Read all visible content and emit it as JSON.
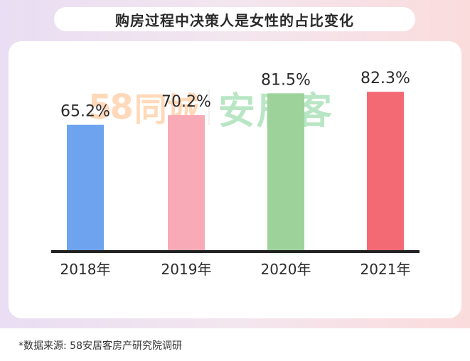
{
  "title": "购房过程中决策人是女性的占比变化",
  "watermark": {
    "logo_number": "58",
    "logo_city": "同城",
    "brand": "安居客"
  },
  "source_note": "*数据来源: 58安居客房产研究院调研",
  "colors": {
    "background_left": "#e9def3",
    "background_right": "#fbdcdc",
    "baseline": "#222222"
  },
  "chart_data": {
    "type": "bar",
    "categories": [
      "2018年",
      "2019年",
      "2020年",
      "2021年"
    ],
    "values": [
      65.2,
      70.2,
      81.5,
      82.3
    ],
    "value_labels": [
      "65.2%",
      "70.2%",
      "81.5%",
      "82.3%"
    ],
    "bar_colors": [
      "#6ea3f0",
      "#f8aab7",
      "#9dd39b",
      "#f36a74"
    ],
    "ylim": [
      0,
      100
    ],
    "grid": false,
    "legend": "none",
    "xlabel": "",
    "ylabel": ""
  }
}
